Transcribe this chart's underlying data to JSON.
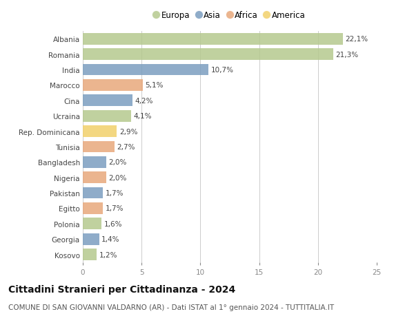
{
  "categories": [
    "Albania",
    "Romania",
    "India",
    "Marocco",
    "Cina",
    "Ucraina",
    "Rep. Dominicana",
    "Tunisia",
    "Bangladesh",
    "Nigeria",
    "Pakistan",
    "Egitto",
    "Polonia",
    "Georgia",
    "Kosovo"
  ],
  "values": [
    22.1,
    21.3,
    10.7,
    5.1,
    4.2,
    4.1,
    2.9,
    2.7,
    2.0,
    2.0,
    1.7,
    1.7,
    1.6,
    1.4,
    1.2
  ],
  "labels": [
    "22,1%",
    "21,3%",
    "10,7%",
    "5,1%",
    "4,2%",
    "4,1%",
    "2,9%",
    "2,7%",
    "2,0%",
    "2,0%",
    "1,7%",
    "1,7%",
    "1,6%",
    "1,4%",
    "1,2%"
  ],
  "continents": [
    "Europa",
    "Europa",
    "Asia",
    "Africa",
    "Asia",
    "Europa",
    "America",
    "Africa",
    "Asia",
    "Africa",
    "Asia",
    "Africa",
    "Europa",
    "Asia",
    "Europa"
  ],
  "continent_colors": {
    "Europa": "#b5c98e",
    "Asia": "#7b9ec0",
    "Africa": "#e8a87c",
    "America": "#f2d06b"
  },
  "legend_order": [
    "Europa",
    "Asia",
    "Africa",
    "America"
  ],
  "xlim": [
    0,
    25
  ],
  "xticks": [
    0,
    5,
    10,
    15,
    20,
    25
  ],
  "title": "Cittadini Stranieri per Cittadinanza - 2024",
  "subtitle": "COMUNE DI SAN GIOVANNI VALDARNO (AR) - Dati ISTAT al 1° gennaio 2024 - TUTTITALIA.IT",
  "background_color": "#ffffff",
  "grid_color": "#cccccc",
  "bar_height": 0.75,
  "title_fontsize": 10,
  "subtitle_fontsize": 7.5,
  "label_fontsize": 7.5,
  "tick_fontsize": 7.5,
  "legend_fontsize": 8.5
}
